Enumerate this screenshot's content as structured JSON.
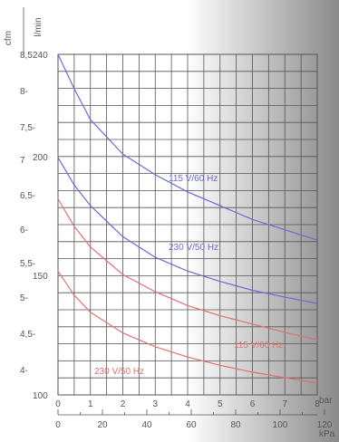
{
  "chart_data": {
    "type": "line",
    "x_axis_bar": {
      "label": "bar",
      "range": [
        0,
        8
      ],
      "ticks": [
        "0",
        "1",
        "2",
        "3",
        "4",
        "5",
        "6",
        "7",
        "8"
      ]
    },
    "x_axis_kpa": {
      "label": "kPa",
      "ticks": [
        "0",
        "20",
        "40",
        "60",
        "80",
        "100",
        "120"
      ]
    },
    "y_axis_cfm": {
      "label": "cfm",
      "range": [
        3.55,
        8.5
      ],
      "ticks": [
        "8,5",
        "8-",
        "7,5-",
        "7",
        "6,5-",
        "6-",
        "5,5-",
        "5-",
        "4,5-",
        "4-"
      ]
    },
    "y_axis_lmin": {
      "label": "l/min",
      "ticks": [
        "240",
        "200",
        "150",
        "100"
      ]
    },
    "series": [
      {
        "name": "115 V/60 Hz",
        "color": "#6a6ad8",
        "x": [
          0,
          0.5,
          1,
          2,
          3,
          4,
          5,
          6,
          7,
          8
        ],
        "y": [
          8.5,
          8.0,
          7.55,
          7.05,
          6.75,
          6.5,
          6.3,
          6.1,
          5.95,
          5.8
        ]
      },
      {
        "name": "230 V/50 Hz",
        "color": "#6a6ad8",
        "x": [
          0,
          0.5,
          1,
          2,
          3,
          4,
          5,
          6,
          7,
          8
        ],
        "y": [
          7.0,
          6.6,
          6.3,
          5.85,
          5.55,
          5.35,
          5.2,
          5.07,
          4.97,
          4.88
        ]
      },
      {
        "name": "115 V/60 Hz",
        "color": "#e07070",
        "x": [
          0,
          0.5,
          1,
          2,
          3,
          4,
          5,
          6,
          7,
          8
        ],
        "y": [
          6.4,
          6.0,
          5.7,
          5.3,
          5.05,
          4.85,
          4.7,
          4.58,
          4.46,
          4.35
        ]
      },
      {
        "name": "230 V/50 Hz",
        "color": "#e07070",
        "x": [
          0,
          0.5,
          1,
          2,
          3,
          4,
          5,
          6,
          7,
          8
        ],
        "y": [
          5.35,
          5.0,
          4.75,
          4.45,
          4.25,
          4.1,
          3.98,
          3.88,
          3.8,
          3.72
        ]
      }
    ],
    "grid": true
  }
}
